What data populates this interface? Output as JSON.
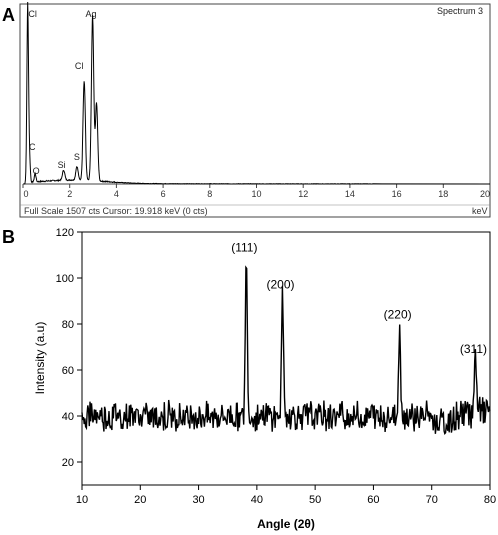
{
  "panels": {
    "a_label": "A",
    "b_label": "B"
  },
  "chart_data": [
    {
      "panel": "A",
      "type": "line",
      "title": "Spectrum 3",
      "xlabel": "keV",
      "xlim": [
        0,
        20
      ],
      "x_ticks": [
        0,
        2,
        4,
        6,
        8,
        10,
        12,
        14,
        16,
        18,
        20
      ],
      "footer_left": "Full Scale 1507 cts  Cursor: 19.918 keV (0 cts)",
      "footer_right": "keV",
      "element_labels": [
        {
          "text": "Cl",
          "x": 0.2
        },
        {
          "text": "Ag",
          "x": 3.0
        },
        {
          "text": "Cl",
          "x": 2.62
        },
        {
          "text": "C",
          "x": 0.27
        },
        {
          "text": "O",
          "x": 0.52
        },
        {
          "text": "Si",
          "x": 1.74
        },
        {
          "text": "S",
          "x": 2.31
        }
      ],
      "peaks": [
        {
          "x": 0.2,
          "counts": 1507
        },
        {
          "x": 0.27,
          "counts": 230
        },
        {
          "x": 0.52,
          "counts": 70
        },
        {
          "x": 1.74,
          "counts": 85
        },
        {
          "x": 2.31,
          "counts": 115
        },
        {
          "x": 2.62,
          "counts": 840
        },
        {
          "x": 2.98,
          "counts": 1400
        },
        {
          "x": 3.15,
          "counts": 660
        }
      ]
    },
    {
      "panel": "B",
      "type": "line",
      "xlabel": "Angle (2θ)",
      "ylabel": "Intensity (a.u)",
      "xlim": [
        10,
        80
      ],
      "ylim": [
        10,
        120
      ],
      "x_ticks": [
        10,
        20,
        30,
        40,
        50,
        60,
        70,
        80
      ],
      "y_ticks": [
        20,
        40,
        60,
        80,
        100,
        120
      ],
      "baseline": 40,
      "peaks": [
        {
          "label": "(111)",
          "x": 38.2,
          "y": 108
        },
        {
          "label": "(200)",
          "x": 44.4,
          "y": 92
        },
        {
          "label": "(220)",
          "x": 64.5,
          "y": 79
        },
        {
          "label": "(311)",
          "x": 77.5,
          "y": 64
        }
      ]
    }
  ]
}
